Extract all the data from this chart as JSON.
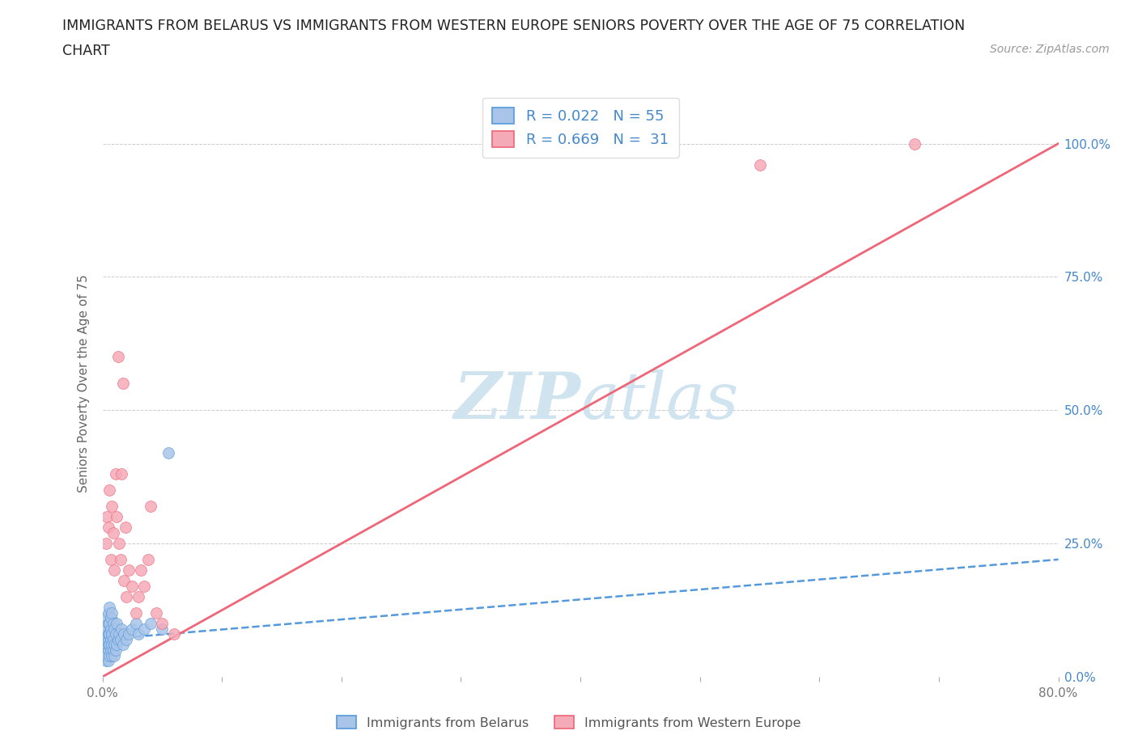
{
  "title_line1": "IMMIGRANTS FROM BELARUS VS IMMIGRANTS FROM WESTERN EUROPE SENIORS POVERTY OVER THE AGE OF 75 CORRELATION",
  "title_line2": "CHART",
  "source": "Source: ZipAtlas.com",
  "ylabel": "Seniors Poverty Over the Age of 75",
  "xmin": 0.0,
  "xmax": 0.8,
  "ymin": 0.0,
  "ymax": 1.1,
  "yticks": [
    0.0,
    0.25,
    0.5,
    0.75,
    1.0
  ],
  "ytick_labels": [
    "0.0%",
    "25.0%",
    "50.0%",
    "75.0%",
    "100.0%"
  ],
  "xticks": [
    0.0,
    0.1,
    0.2,
    0.3,
    0.4,
    0.5,
    0.6,
    0.7,
    0.8
  ],
  "xtick_labels": [
    "0.0%",
    "",
    "",
    "",
    "",
    "",
    "",
    "",
    "80.0%"
  ],
  "r_belarus": 0.022,
  "n_belarus": 55,
  "r_western": 0.669,
  "n_western": 31,
  "color_belarus": "#a8c4e8",
  "color_western": "#f5aaB8",
  "line_belarus_color": "#5599dd",
  "line_western_color": "#ee6677",
  "watermark_color": "#d0e4f0",
  "background_color": "#ffffff",
  "grid_color": "#cccccc",
  "belarus_scatter_x": [
    0.002,
    0.002,
    0.003,
    0.003,
    0.003,
    0.004,
    0.004,
    0.004,
    0.004,
    0.004,
    0.005,
    0.005,
    0.005,
    0.005,
    0.005,
    0.005,
    0.005,
    0.006,
    0.006,
    0.006,
    0.006,
    0.006,
    0.007,
    0.007,
    0.007,
    0.007,
    0.008,
    0.008,
    0.008,
    0.008,
    0.009,
    0.009,
    0.009,
    0.01,
    0.01,
    0.01,
    0.011,
    0.011,
    0.012,
    0.012,
    0.013,
    0.014,
    0.015,
    0.016,
    0.017,
    0.018,
    0.02,
    0.022,
    0.025,
    0.028,
    0.03,
    0.035,
    0.04,
    0.05,
    0.055
  ],
  "belarus_scatter_y": [
    0.04,
    0.06,
    0.03,
    0.05,
    0.08,
    0.04,
    0.06,
    0.07,
    0.09,
    0.11,
    0.03,
    0.05,
    0.06,
    0.07,
    0.08,
    0.1,
    0.12,
    0.04,
    0.06,
    0.08,
    0.1,
    0.13,
    0.05,
    0.07,
    0.09,
    0.11,
    0.04,
    0.06,
    0.08,
    0.12,
    0.05,
    0.07,
    0.1,
    0.04,
    0.06,
    0.09,
    0.05,
    0.08,
    0.06,
    0.1,
    0.07,
    0.08,
    0.07,
    0.09,
    0.06,
    0.08,
    0.07,
    0.08,
    0.09,
    0.1,
    0.08,
    0.09,
    0.1,
    0.09,
    0.42
  ],
  "western_scatter_x": [
    0.003,
    0.004,
    0.005,
    0.006,
    0.007,
    0.008,
    0.009,
    0.01,
    0.011,
    0.012,
    0.013,
    0.014,
    0.015,
    0.016,
    0.017,
    0.018,
    0.019,
    0.02,
    0.022,
    0.025,
    0.028,
    0.03,
    0.032,
    0.035,
    0.038,
    0.04,
    0.045,
    0.05,
    0.06,
    0.55,
    0.68
  ],
  "western_scatter_y": [
    0.25,
    0.3,
    0.28,
    0.35,
    0.22,
    0.32,
    0.27,
    0.2,
    0.38,
    0.3,
    0.6,
    0.25,
    0.22,
    0.38,
    0.55,
    0.18,
    0.28,
    0.15,
    0.2,
    0.17,
    0.12,
    0.15,
    0.2,
    0.17,
    0.22,
    0.32,
    0.12,
    0.1,
    0.08,
    0.96,
    1.0
  ],
  "belarus_trendline_x": [
    0.0,
    0.8
  ],
  "belarus_trendline_y": [
    0.07,
    0.22
  ],
  "western_trendline_x": [
    0.0,
    0.8
  ],
  "western_trendline_y": [
    0.0,
    1.0
  ]
}
